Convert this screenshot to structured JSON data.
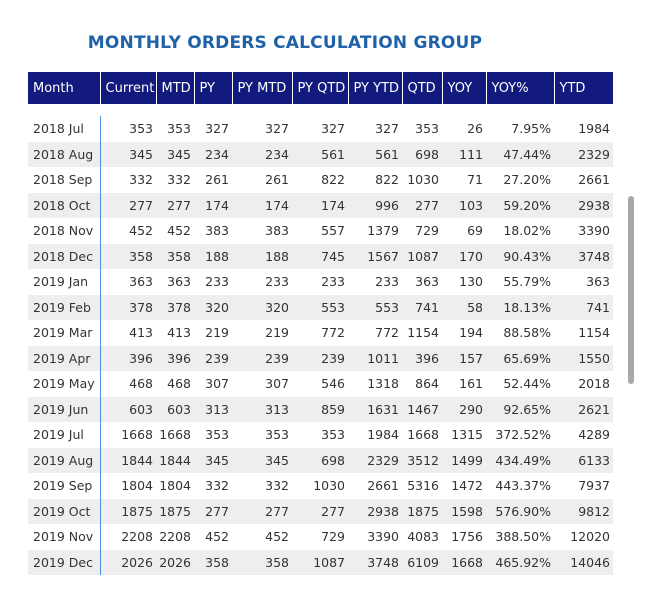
{
  "title": "MONTHLY ORDERS CALCULATION GROUP",
  "colors": {
    "header_bg": "#121a7d",
    "title": "#1f62a8",
    "divider": "#4a90e2",
    "stripe": "#eeeeee"
  },
  "table": {
    "columns": [
      "Month",
      "Current",
      "MTD",
      "PY",
      "PY MTD",
      "PY QTD",
      "PY YTD",
      "QTD",
      "YOY",
      "YOY%",
      "YTD"
    ],
    "rows": [
      [
        "2018 Jul",
        "353",
        "353",
        "327",
        "327",
        "327",
        "327",
        "353",
        "26",
        "7.95%",
        "1984"
      ],
      [
        "2018 Aug",
        "345",
        "345",
        "234",
        "234",
        "561",
        "561",
        "698",
        "111",
        "47.44%",
        "2329"
      ],
      [
        "2018 Sep",
        "332",
        "332",
        "261",
        "261",
        "822",
        "822",
        "1030",
        "71",
        "27.20%",
        "2661"
      ],
      [
        "2018 Oct",
        "277",
        "277",
        "174",
        "174",
        "174",
        "996",
        "277",
        "103",
        "59.20%",
        "2938"
      ],
      [
        "2018 Nov",
        "452",
        "452",
        "383",
        "383",
        "557",
        "1379",
        "729",
        "69",
        "18.02%",
        "3390"
      ],
      [
        "2018 Dec",
        "358",
        "358",
        "188",
        "188",
        "745",
        "1567",
        "1087",
        "170",
        "90.43%",
        "3748"
      ],
      [
        "2019 Jan",
        "363",
        "363",
        "233",
        "233",
        "233",
        "233",
        "363",
        "130",
        "55.79%",
        "363"
      ],
      [
        "2019 Feb",
        "378",
        "378",
        "320",
        "320",
        "553",
        "553",
        "741",
        "58",
        "18.13%",
        "741"
      ],
      [
        "2019 Mar",
        "413",
        "413",
        "219",
        "219",
        "772",
        "772",
        "1154",
        "194",
        "88.58%",
        "1154"
      ],
      [
        "2019 Apr",
        "396",
        "396",
        "239",
        "239",
        "239",
        "1011",
        "396",
        "157",
        "65.69%",
        "1550"
      ],
      [
        "2019 May",
        "468",
        "468",
        "307",
        "307",
        "546",
        "1318",
        "864",
        "161",
        "52.44%",
        "2018"
      ],
      [
        "2019 Jun",
        "603",
        "603",
        "313",
        "313",
        "859",
        "1631",
        "1467",
        "290",
        "92.65%",
        "2621"
      ],
      [
        "2019 Jul",
        "1668",
        "1668",
        "353",
        "353",
        "353",
        "1984",
        "1668",
        "1315",
        "372.52%",
        "4289"
      ],
      [
        "2019 Aug",
        "1844",
        "1844",
        "345",
        "345",
        "698",
        "2329",
        "3512",
        "1499",
        "434.49%",
        "6133"
      ],
      [
        "2019 Sep",
        "1804",
        "1804",
        "332",
        "332",
        "1030",
        "2661",
        "5316",
        "1472",
        "443.37%",
        "7937"
      ],
      [
        "2019 Oct",
        "1875",
        "1875",
        "277",
        "277",
        "277",
        "2938",
        "1875",
        "1598",
        "576.90%",
        "9812"
      ],
      [
        "2019 Nov",
        "2208",
        "2208",
        "452",
        "452",
        "729",
        "3390",
        "4083",
        "1756",
        "388.50%",
        "12020"
      ],
      [
        "2019 Dec",
        "2026",
        "2026",
        "358",
        "358",
        "1087",
        "3748",
        "6109",
        "1668",
        "465.92%",
        "14046"
      ]
    ]
  }
}
